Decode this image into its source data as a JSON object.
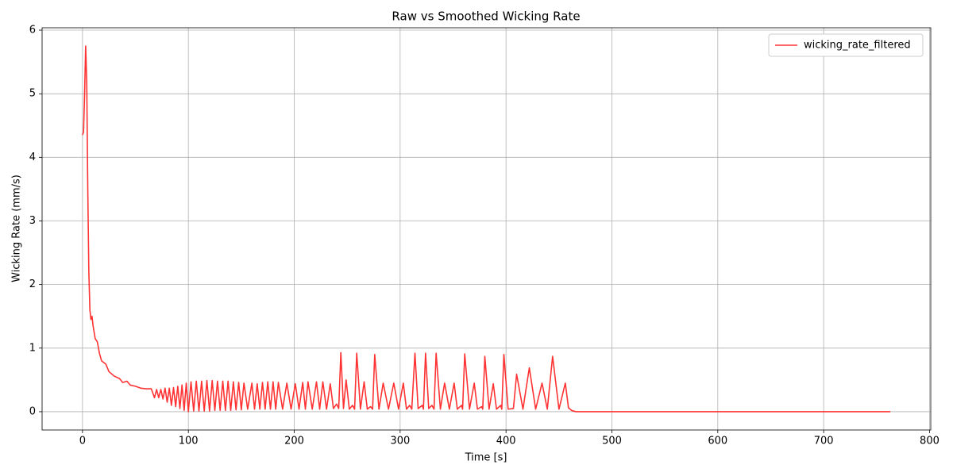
{
  "chart_data": {
    "type": "line",
    "title": "Raw vs Smoothed Wicking Rate",
    "xlabel": "Time [s]",
    "ylabel": "Wicking Rate (mm/s)",
    "x": [
      0,
      1,
      2,
      3,
      4,
      5,
      6,
      7,
      8,
      9,
      10,
      12,
      14,
      16,
      18,
      22,
      25,
      30,
      35,
      38,
      42,
      45,
      50,
      55,
      60,
      65,
      68,
      70,
      72,
      74,
      76,
      78,
      80,
      82,
      84,
      86,
      88,
      90,
      92,
      94,
      96,
      98,
      100,
      102.5,
      105,
      107.5,
      110,
      112.5,
      115,
      117.5,
      120,
      122.5,
      125,
      127.5,
      130,
      132.5,
      135,
      137.5,
      140,
      142.5,
      145,
      147.5,
      150,
      152.5,
      156,
      160,
      162.5,
      165,
      167.5,
      170,
      172.5,
      175,
      177.5,
      180,
      182.5,
      185,
      189,
      193,
      197,
      201,
      204.5,
      208,
      210.5,
      213,
      217,
      221,
      224,
      227,
      230.5,
      234,
      237,
      240,
      242,
      244,
      246.5,
      249,
      252,
      255,
      257,
      259,
      262.5,
      266,
      269,
      272,
      274,
      276,
      280,
      284,
      289,
      294,
      298.5,
      303,
      306,
      309,
      311,
      314,
      317,
      321,
      322,
      324,
      327,
      330,
      332,
      334,
      338,
      342,
      346.5,
      351,
      354,
      358,
      359,
      361,
      365.5,
      370,
      373,
      377,
      378,
      380,
      384,
      388,
      391,
      395,
      396,
      398,
      402,
      407,
      410,
      416,
      422,
      428,
      434,
      439,
      444,
      450,
      456,
      459,
      462,
      466,
      763
    ],
    "series": [
      {
        "name": "wicking_rate_filtered",
        "color": "#ff3333",
        "values": [
          4.35,
          4.4,
          5.0,
          5.75,
          5.2,
          3.5,
          2.2,
          1.6,
          1.45,
          1.5,
          1.35,
          1.15,
          1.1,
          0.92,
          0.8,
          0.75,
          0.63,
          0.56,
          0.52,
          0.46,
          0.48,
          0.42,
          0.4,
          0.37,
          0.36,
          0.36,
          0.22,
          0.35,
          0.22,
          0.35,
          0.2,
          0.37,
          0.15,
          0.37,
          0.1,
          0.38,
          0.08,
          0.4,
          0.05,
          0.42,
          0.02,
          0.45,
          0.0,
          0.47,
          0.01,
          0.48,
          0.01,
          0.48,
          0.01,
          0.49,
          0.01,
          0.49,
          0.02,
          0.48,
          0.02,
          0.48,
          0.02,
          0.48,
          0.02,
          0.47,
          0.03,
          0.46,
          0.03,
          0.45,
          0.04,
          0.45,
          0.04,
          0.44,
          0.04,
          0.46,
          0.04,
          0.47,
          0.04,
          0.47,
          0.04,
          0.46,
          0.04,
          0.45,
          0.04,
          0.44,
          0.04,
          0.46,
          0.04,
          0.47,
          0.04,
          0.47,
          0.04,
          0.47,
          0.04,
          0.44,
          0.05,
          0.12,
          0.05,
          0.93,
          0.05,
          0.5,
          0.04,
          0.1,
          0.04,
          0.92,
          0.04,
          0.47,
          0.04,
          0.08,
          0.04,
          0.9,
          0.04,
          0.45,
          0.04,
          0.45,
          0.04,
          0.45,
          0.04,
          0.1,
          0.04,
          0.92,
          0.05,
          0.1,
          0.04,
          0.92,
          0.05,
          0.1,
          0.04,
          0.92,
          0.04,
          0.45,
          0.04,
          0.45,
          0.04,
          0.1,
          0.04,
          0.91,
          0.04,
          0.45,
          0.04,
          0.08,
          0.04,
          0.87,
          0.04,
          0.44,
          0.04,
          0.1,
          0.04,
          0.9,
          0.04,
          0.05,
          0.59,
          0.04,
          0.69,
          0.04,
          0.45,
          0.04,
          0.87,
          0.04,
          0.45,
          0.06,
          0.02,
          0,
          0
        ]
      }
    ],
    "xlim": [
      -38.15,
      801.15
    ],
    "ylim": [
      -0.2875,
      6.0375
    ],
    "xticks": [
      0,
      100,
      200,
      300,
      400,
      500,
      600,
      700,
      800
    ],
    "yticks": [
      0,
      1,
      2,
      3,
      4,
      5,
      6
    ],
    "grid": true,
    "legend": "upper right"
  }
}
